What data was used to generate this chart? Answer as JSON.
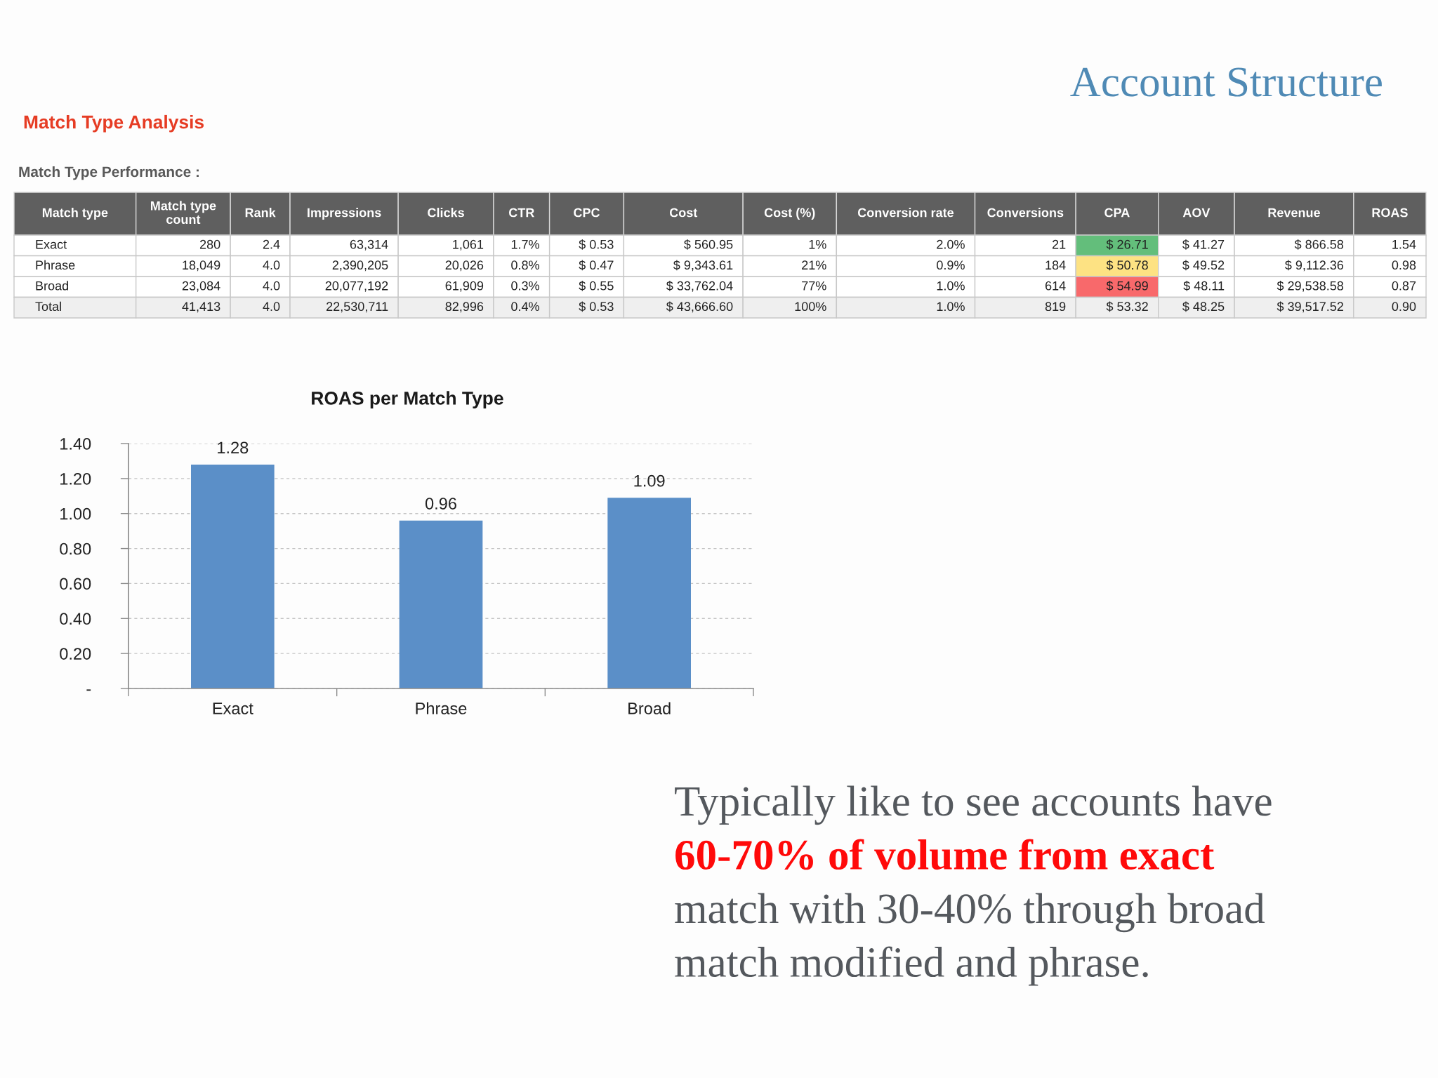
{
  "chart_data": [
    {
      "type": "other",
      "title": "Account Structure"
    },
    {
      "type": "other",
      "title": "Match Type Analysis",
      "subtitle": "Match Type Performance :",
      "categories": [
        "Match type",
        "Match type count",
        "Rank",
        "Impressions",
        "Clicks",
        "CTR",
        "CPC",
        "Cost",
        "Cost (%)",
        "Conversion rate",
        "Conversions",
        "CPA",
        "AOV",
        "Revenue",
        "ROAS"
      ],
      "cell_labels": [
        [
          "Exact",
          "280",
          "2.4",
          "63,314",
          "1,061",
          "1.7%",
          "$ 0.53",
          "$ 560.95",
          "1%",
          "2.0%",
          "21",
          "$ 26.71",
          "$ 41.27",
          "$ 866.58",
          "1.54"
        ],
        [
          "Phrase",
          "18,049",
          "4.0",
          "2,390,205",
          "20,026",
          "0.8%",
          "$ 0.47",
          "$ 9,343.61",
          "21%",
          "0.9%",
          "184",
          "$ 50.78",
          "$ 49.52",
          "$ 9,112.36",
          "0.98"
        ],
        [
          "Broad",
          "23,084",
          "4.0",
          "20,077,192",
          "61,909",
          "0.3%",
          "$ 0.55",
          "$ 33,762.04",
          "77%",
          "1.0%",
          "614",
          "$ 54.99",
          "$ 48.11",
          "$ 29,538.58",
          "0.87"
        ],
        [
          "Total",
          "41,413",
          "4.0",
          "22,530,711",
          "82,996",
          "0.4%",
          "$ 0.53",
          "$ 43,666.60",
          "100%",
          "1.0%",
          "819",
          "$ 53.32",
          "$ 48.25",
          "$ 39,517.52",
          "0.90"
        ]
      ],
      "colors": [
        [
          null,
          null,
          null,
          null,
          null,
          null,
          null,
          null,
          null,
          null,
          null,
          "#63be7b",
          null,
          null,
          null
        ],
        [
          null,
          null,
          null,
          null,
          null,
          null,
          null,
          null,
          null,
          null,
          null,
          "#fde283",
          null,
          null,
          null
        ],
        [
          null,
          null,
          null,
          null,
          null,
          null,
          null,
          null,
          null,
          null,
          null,
          "#f8696b",
          null,
          null,
          null
        ],
        [
          "#efefef",
          "#efefef",
          "#efefef",
          "#efefef",
          "#efefef",
          "#efefef",
          "#efefef",
          "#efefef",
          "#efefef",
          "#efefef",
          "#efefef",
          "#efefef",
          "#efefef",
          "#efefef",
          "#efefef"
        ]
      ]
    },
    {
      "type": "bar",
      "title": "ROAS per Match Type",
      "categories": [
        "Exact",
        "Phrase",
        "Broad"
      ],
      "values": [
        1.28,
        0.96,
        1.09
      ],
      "color": "#5b8fc8",
      "data_labels": true,
      "ylim": [
        0,
        1.4
      ],
      "yticks": [
        {
          "value": 0,
          "label": "-"
        },
        {
          "value": 0.2,
          "label": "0.20"
        },
        {
          "value": 0.4,
          "label": "0.40"
        },
        {
          "value": 0.6,
          "label": "0.60"
        },
        {
          "value": 0.8,
          "label": "0.80"
        },
        {
          "value": 1.0,
          "label": "1.00"
        },
        {
          "value": 1.2,
          "label": "1.20"
        },
        {
          "value": 1.4,
          "label": "1.40"
        }
      ],
      "grid": "y"
    },
    {
      "type": "other",
      "annotations": [
        "Typically like to see accounts have",
        "60-70% of volume from exact",
        "match with 30-40% through broad",
        "match modified and phrase."
      ],
      "colors": [
        "#54585d",
        "#ff0a0a",
        "#54585d",
        "#54585d"
      ]
    }
  ]
}
